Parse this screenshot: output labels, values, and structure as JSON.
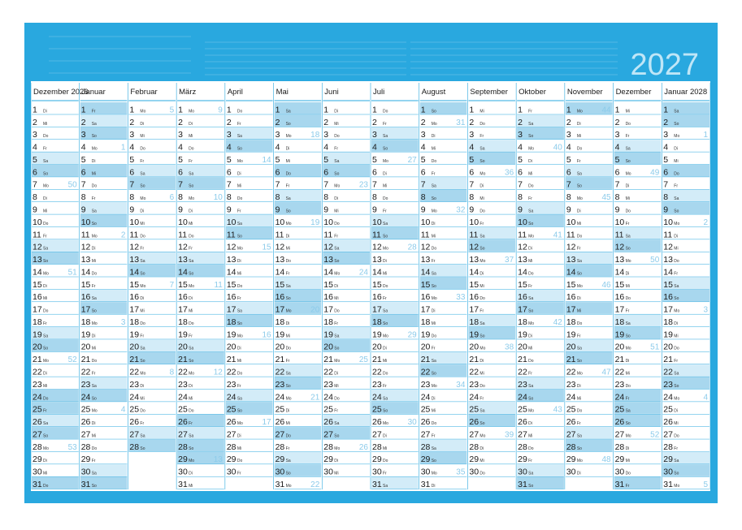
{
  "year": "2027",
  "weekdays": [
    "Mo",
    "Di",
    "Mi",
    "Do",
    "Fr",
    "Sa",
    "So"
  ],
  "months": [
    {
      "name": "Dezember 2026",
      "days": [
        1,
        2,
        3,
        4,
        5,
        6,
        7,
        8,
        9,
        10,
        11,
        12,
        13,
        14,
        15,
        16,
        17,
        18,
        19,
        20,
        21,
        22,
        23,
        24,
        25,
        26,
        27,
        28,
        29,
        30,
        31
      ],
      "wd": [
        "Di",
        "Mi",
        "Do",
        "Fr",
        "Sa",
        "So",
        "Mo",
        "Di",
        "Mi",
        "Do",
        "Fr",
        "Sa",
        "So",
        "Mo",
        "Di",
        "Mi",
        "Do",
        "Fr",
        "Sa",
        "So",
        "Mo",
        "Di",
        "Mi",
        "Do",
        "Fr",
        "Sa",
        "So",
        "Mo",
        "Di",
        "Mi",
        "Do"
      ],
      "weeks": [
        {
          "day": 7,
          "kw": 50
        },
        {
          "day": 14,
          "kw": 51
        },
        {
          "day": 21,
          "kw": 52
        },
        {
          "day": 28,
          "kw": 53
        }
      ],
      "holidays": [
        24,
        25,
        31
      ]
    },
    {
      "name": "Januar",
      "days": [
        1,
        2,
        3,
        4,
        5,
        6,
        7,
        8,
        9,
        10,
        11,
        12,
        13,
        14,
        15,
        16,
        17,
        18,
        19,
        20,
        21,
        22,
        23,
        24,
        25,
        26,
        27,
        28,
        29,
        30,
        31
      ],
      "wd": [
        "Fr",
        "Sa",
        "So",
        "Mo",
        "Di",
        "Mi",
        "Do",
        "Fr",
        "Sa",
        "So",
        "Mo",
        "Di",
        "Mi",
        "Do",
        "Fr",
        "Sa",
        "So",
        "Mo",
        "Di",
        "Mi",
        "Do",
        "Fr",
        "Sa",
        "So",
        "Mo",
        "Di",
        "Mi",
        "Do",
        "Fr",
        "Sa",
        "So"
      ],
      "weeks": [
        {
          "day": 4,
          "kw": 1
        },
        {
          "day": 11,
          "kw": 2
        },
        {
          "day": 18,
          "kw": 3
        },
        {
          "day": 25,
          "kw": 4
        }
      ],
      "holidays": [
        1,
        6
      ]
    },
    {
      "name": "Februar",
      "days": [
        1,
        2,
        3,
        4,
        5,
        6,
        7,
        8,
        9,
        10,
        11,
        12,
        13,
        14,
        15,
        16,
        17,
        18,
        19,
        20,
        21,
        22,
        23,
        24,
        25,
        26,
        27,
        28
      ],
      "wd": [
        "Mo",
        "Di",
        "Mi",
        "Do",
        "Fr",
        "Sa",
        "So",
        "Mo",
        "Di",
        "Mi",
        "Do",
        "Fr",
        "Sa",
        "So",
        "Mo",
        "Di",
        "Mi",
        "Do",
        "Fr",
        "Sa",
        "So",
        "Mo",
        "Di",
        "Mi",
        "Do",
        "Fr",
        "Sa",
        "So"
      ],
      "weeks": [
        {
          "day": 1,
          "kw": 5
        },
        {
          "day": 8,
          "kw": 6
        },
        {
          "day": 15,
          "kw": 7
        },
        {
          "day": 22,
          "kw": 8
        }
      ],
      "holidays": []
    },
    {
      "name": "März",
      "days": [
        1,
        2,
        3,
        4,
        5,
        6,
        7,
        8,
        9,
        10,
        11,
        12,
        13,
        14,
        15,
        16,
        17,
        18,
        19,
        20,
        21,
        22,
        23,
        24,
        25,
        26,
        27,
        28,
        29,
        30,
        31
      ],
      "wd": [
        "Mo",
        "Di",
        "Mi",
        "Do",
        "Fr",
        "Sa",
        "So",
        "Mo",
        "Di",
        "Mi",
        "Do",
        "Fr",
        "Sa",
        "So",
        "Mo",
        "Di",
        "Mi",
        "Do",
        "Fr",
        "Sa",
        "So",
        "Mo",
        "Di",
        "Mi",
        "Do",
        "Fr",
        "Sa",
        "So",
        "Mo",
        "Di",
        "Mi"
      ],
      "weeks": [
        {
          "day": 1,
          "kw": 9
        },
        {
          "day": 8,
          "kw": 10
        },
        {
          "day": 15,
          "kw": 11
        },
        {
          "day": 22,
          "kw": 12
        },
        {
          "day": 29,
          "kw": 13
        }
      ],
      "holidays": [
        26,
        29
      ]
    },
    {
      "name": "April",
      "days": [
        1,
        2,
        3,
        4,
        5,
        6,
        7,
        8,
        9,
        10,
        11,
        12,
        13,
        14,
        15,
        16,
        17,
        18,
        19,
        20,
        21,
        22,
        23,
        24,
        25,
        26,
        27,
        28,
        29,
        30
      ],
      "wd": [
        "Do",
        "Fr",
        "Sa",
        "So",
        "Mo",
        "Di",
        "Mi",
        "Do",
        "Fr",
        "Sa",
        "So",
        "Mo",
        "Di",
        "Mi",
        "Do",
        "Fr",
        "Sa",
        "So",
        "Mo",
        "Di",
        "Mi",
        "Do",
        "Fr",
        "Sa",
        "So",
        "Mo",
        "Di",
        "Mi",
        "Do",
        "Fr"
      ],
      "weeks": [
        {
          "day": 5,
          "kw": 14
        },
        {
          "day": 12,
          "kw": 15
        },
        {
          "day": 19,
          "kw": 16
        },
        {
          "day": 26,
          "kw": 17
        }
      ],
      "holidays": []
    },
    {
      "name": "Mai",
      "days": [
        1,
        2,
        3,
        4,
        5,
        6,
        7,
        8,
        9,
        10,
        11,
        12,
        13,
        14,
        15,
        16,
        17,
        18,
        19,
        20,
        21,
        22,
        23,
        24,
        25,
        26,
        27,
        28,
        29,
        30,
        31
      ],
      "wd": [
        "Sa",
        "So",
        "Mo",
        "Di",
        "Mi",
        "Do",
        "Fr",
        "Sa",
        "So",
        "Mo",
        "Di",
        "Mi",
        "Do",
        "Fr",
        "Sa",
        "So",
        "Mo",
        "Di",
        "Mi",
        "Do",
        "Fr",
        "Sa",
        "So",
        "Mo",
        "Di",
        "Mi",
        "Do",
        "Fr",
        "Sa",
        "So",
        "Mo"
      ],
      "weeks": [
        {
          "day": 3,
          "kw": 18
        },
        {
          "day": 10,
          "kw": 19
        },
        {
          "day": 17,
          "kw": 20
        },
        {
          "day": 24,
          "kw": 21
        },
        {
          "day": 31,
          "kw": 22
        }
      ],
      "holidays": [
        1,
        6,
        17,
        27
      ]
    },
    {
      "name": "Juni",
      "days": [
        1,
        2,
        3,
        4,
        5,
        6,
        7,
        8,
        9,
        10,
        11,
        12,
        13,
        14,
        15,
        16,
        17,
        18,
        19,
        20,
        21,
        22,
        23,
        24,
        25,
        26,
        27,
        28,
        29,
        30
      ],
      "wd": [
        "Di",
        "Mi",
        "Do",
        "Fr",
        "Sa",
        "So",
        "Mo",
        "Di",
        "Mi",
        "Do",
        "Fr",
        "Sa",
        "So",
        "Mo",
        "Di",
        "Mi",
        "Do",
        "Fr",
        "Sa",
        "So",
        "Mo",
        "Di",
        "Mi",
        "Do",
        "Fr",
        "Sa",
        "So",
        "Mo",
        "Di",
        "Mi"
      ],
      "weeks": [
        {
          "day": 7,
          "kw": 23
        },
        {
          "day": 14,
          "kw": 24
        },
        {
          "day": 21,
          "kw": 25
        },
        {
          "day": 28,
          "kw": 26
        }
      ],
      "holidays": []
    },
    {
      "name": "Juli",
      "days": [
        1,
        2,
        3,
        4,
        5,
        6,
        7,
        8,
        9,
        10,
        11,
        12,
        13,
        14,
        15,
        16,
        17,
        18,
        19,
        20,
        21,
        22,
        23,
        24,
        25,
        26,
        27,
        28,
        29,
        30,
        31
      ],
      "wd": [
        "Do",
        "Fr",
        "Sa",
        "So",
        "Mo",
        "Di",
        "Mi",
        "Do",
        "Fr",
        "Sa",
        "So",
        "Mo",
        "Di",
        "Mi",
        "Do",
        "Fr",
        "Sa",
        "So",
        "Mo",
        "Di",
        "Mi",
        "Do",
        "Fr",
        "Sa",
        "So",
        "Mo",
        "Di",
        "Mi",
        "Do",
        "Fr",
        "Sa"
      ],
      "weeks": [
        {
          "day": 5,
          "kw": 27
        },
        {
          "day": 12,
          "kw": 28
        },
        {
          "day": 19,
          "kw": 29
        },
        {
          "day": 26,
          "kw": 30
        }
      ],
      "holidays": []
    },
    {
      "name": "August",
      "days": [
        1,
        2,
        3,
        4,
        5,
        6,
        7,
        8,
        9,
        10,
        11,
        12,
        13,
        14,
        15,
        16,
        17,
        18,
        19,
        20,
        21,
        22,
        23,
        24,
        25,
        26,
        27,
        28,
        29,
        30,
        31
      ],
      "wd": [
        "So",
        "Mo",
        "Di",
        "Mi",
        "Do",
        "Fr",
        "Sa",
        "So",
        "Mo",
        "Di",
        "Mi",
        "Do",
        "Fr",
        "Sa",
        "So",
        "Mo",
        "Di",
        "Mi",
        "Do",
        "Fr",
        "Sa",
        "So",
        "Mo",
        "Di",
        "Mi",
        "Do",
        "Fr",
        "Sa",
        "So",
        "Mo",
        "Di"
      ],
      "weeks": [
        {
          "day": 2,
          "kw": 31
        },
        {
          "day": 9,
          "kw": 32
        },
        {
          "day": 16,
          "kw": 33
        },
        {
          "day": 23,
          "kw": 34
        },
        {
          "day": 30,
          "kw": 35
        }
      ],
      "holidays": [
        15
      ]
    },
    {
      "name": "September",
      "days": [
        1,
        2,
        3,
        4,
        5,
        6,
        7,
        8,
        9,
        10,
        11,
        12,
        13,
        14,
        15,
        16,
        17,
        18,
        19,
        20,
        21,
        22,
        23,
        24,
        25,
        26,
        27,
        28,
        29,
        30
      ],
      "wd": [
        "Mi",
        "Do",
        "Fr",
        "Sa",
        "So",
        "Mo",
        "Di",
        "Mi",
        "Do",
        "Fr",
        "Sa",
        "So",
        "Mo",
        "Di",
        "Mi",
        "Do",
        "Fr",
        "Sa",
        "So",
        "Mo",
        "Di",
        "Mi",
        "Do",
        "Fr",
        "Sa",
        "So",
        "Mo",
        "Di",
        "Mi",
        "Do"
      ],
      "weeks": [
        {
          "day": 6,
          "kw": 36
        },
        {
          "day": 13,
          "kw": 37
        },
        {
          "day": 20,
          "kw": 38
        },
        {
          "day": 27,
          "kw": 39
        }
      ],
      "holidays": []
    },
    {
      "name": "Oktober",
      "days": [
        1,
        2,
        3,
        4,
        5,
        6,
        7,
        8,
        9,
        10,
        11,
        12,
        13,
        14,
        15,
        16,
        17,
        18,
        19,
        20,
        21,
        22,
        23,
        24,
        25,
        26,
        27,
        28,
        29,
        30,
        31
      ],
      "wd": [
        "Fr",
        "Sa",
        "So",
        "Mo",
        "Di",
        "Mi",
        "Do",
        "Fr",
        "Sa",
        "So",
        "Mo",
        "Di",
        "Mi",
        "Do",
        "Fr",
        "Sa",
        "So",
        "Mo",
        "Di",
        "Mi",
        "Do",
        "Fr",
        "Sa",
        "So",
        "Mo",
        "Di",
        "Mi",
        "Do",
        "Fr",
        "Sa",
        "So"
      ],
      "weeks": [
        {
          "day": 4,
          "kw": 40
        },
        {
          "day": 11,
          "kw": 41
        },
        {
          "day": 18,
          "kw": 42
        },
        {
          "day": 25,
          "kw": 43
        }
      ],
      "holidays": [
        3,
        31
      ]
    },
    {
      "name": "November",
      "days": [
        1,
        2,
        3,
        4,
        5,
        6,
        7,
        8,
        9,
        10,
        11,
        12,
        13,
        14,
        15,
        16,
        17,
        18,
        19,
        20,
        21,
        22,
        23,
        24,
        25,
        26,
        27,
        28,
        29,
        30
      ],
      "wd": [
        "Mo",
        "Di",
        "Mi",
        "Do",
        "Fr",
        "Sa",
        "So",
        "Mo",
        "Di",
        "Mi",
        "Do",
        "Fr",
        "Sa",
        "So",
        "Mo",
        "Di",
        "Mi",
        "Do",
        "Fr",
        "Sa",
        "So",
        "Mo",
        "Di",
        "Mi",
        "Do",
        "Fr",
        "Sa",
        "So",
        "Mo",
        "Di"
      ],
      "weeks": [
        {
          "day": 1,
          "kw": 44
        },
        {
          "day": 8,
          "kw": 45
        },
        {
          "day": 15,
          "kw": 46
        },
        {
          "day": 22,
          "kw": 47
        },
        {
          "day": 29,
          "kw": 48
        }
      ],
      "holidays": [
        1,
        17
      ]
    },
    {
      "name": "Dezember",
      "days": [
        1,
        2,
        3,
        4,
        5,
        6,
        7,
        8,
        9,
        10,
        11,
        12,
        13,
        14,
        15,
        16,
        17,
        18,
        19,
        20,
        21,
        22,
        23,
        24,
        25,
        26,
        27,
        28,
        29,
        30,
        31
      ],
      "wd": [
        "Mi",
        "Do",
        "Fr",
        "Sa",
        "So",
        "Mo",
        "Di",
        "Mi",
        "Do",
        "Fr",
        "Sa",
        "So",
        "Mo",
        "Di",
        "Mi",
        "Do",
        "Fr",
        "Sa",
        "So",
        "Mo",
        "Di",
        "Mi",
        "Do",
        "Fr",
        "Sa",
        "So",
        "Mo",
        "Di",
        "Mi",
        "Do",
        "Fr"
      ],
      "weeks": [
        {
          "day": 6,
          "kw": 49
        },
        {
          "day": 13,
          "kw": 50
        },
        {
          "day": 20,
          "kw": 51
        },
        {
          "day": 27,
          "kw": 52
        }
      ],
      "holidays": [
        24,
        25,
        31
      ]
    },
    {
      "name": "Januar 2028",
      "days": [
        1,
        2,
        3,
        4,
        5,
        6,
        7,
        8,
        9,
        10,
        11,
        12,
        13,
        14,
        15,
        16,
        17,
        18,
        19,
        20,
        21,
        22,
        23,
        24,
        25,
        26,
        27,
        28,
        29,
        30,
        31
      ],
      "wd": [
        "Sa",
        "So",
        "Mo",
        "Di",
        "Mi",
        "Do",
        "Fr",
        "Sa",
        "So",
        "Mo",
        "Di",
        "Mi",
        "Do",
        "Fr",
        "Sa",
        "So",
        "Mo",
        "Di",
        "Mi",
        "Do",
        "Fr",
        "Sa",
        "So",
        "Mo",
        "Di",
        "Mi",
        "Do",
        "Fr",
        "Sa",
        "So",
        "Mo"
      ],
      "weeks": [
        {
          "day": 3,
          "kw": 1
        },
        {
          "day": 10,
          "kw": 2
        },
        {
          "day": 17,
          "kw": 3
        },
        {
          "day": 24,
          "kw": 4
        },
        {
          "day": 31,
          "kw": 5
        }
      ],
      "holidays": [
        1,
        6
      ]
    }
  ]
}
